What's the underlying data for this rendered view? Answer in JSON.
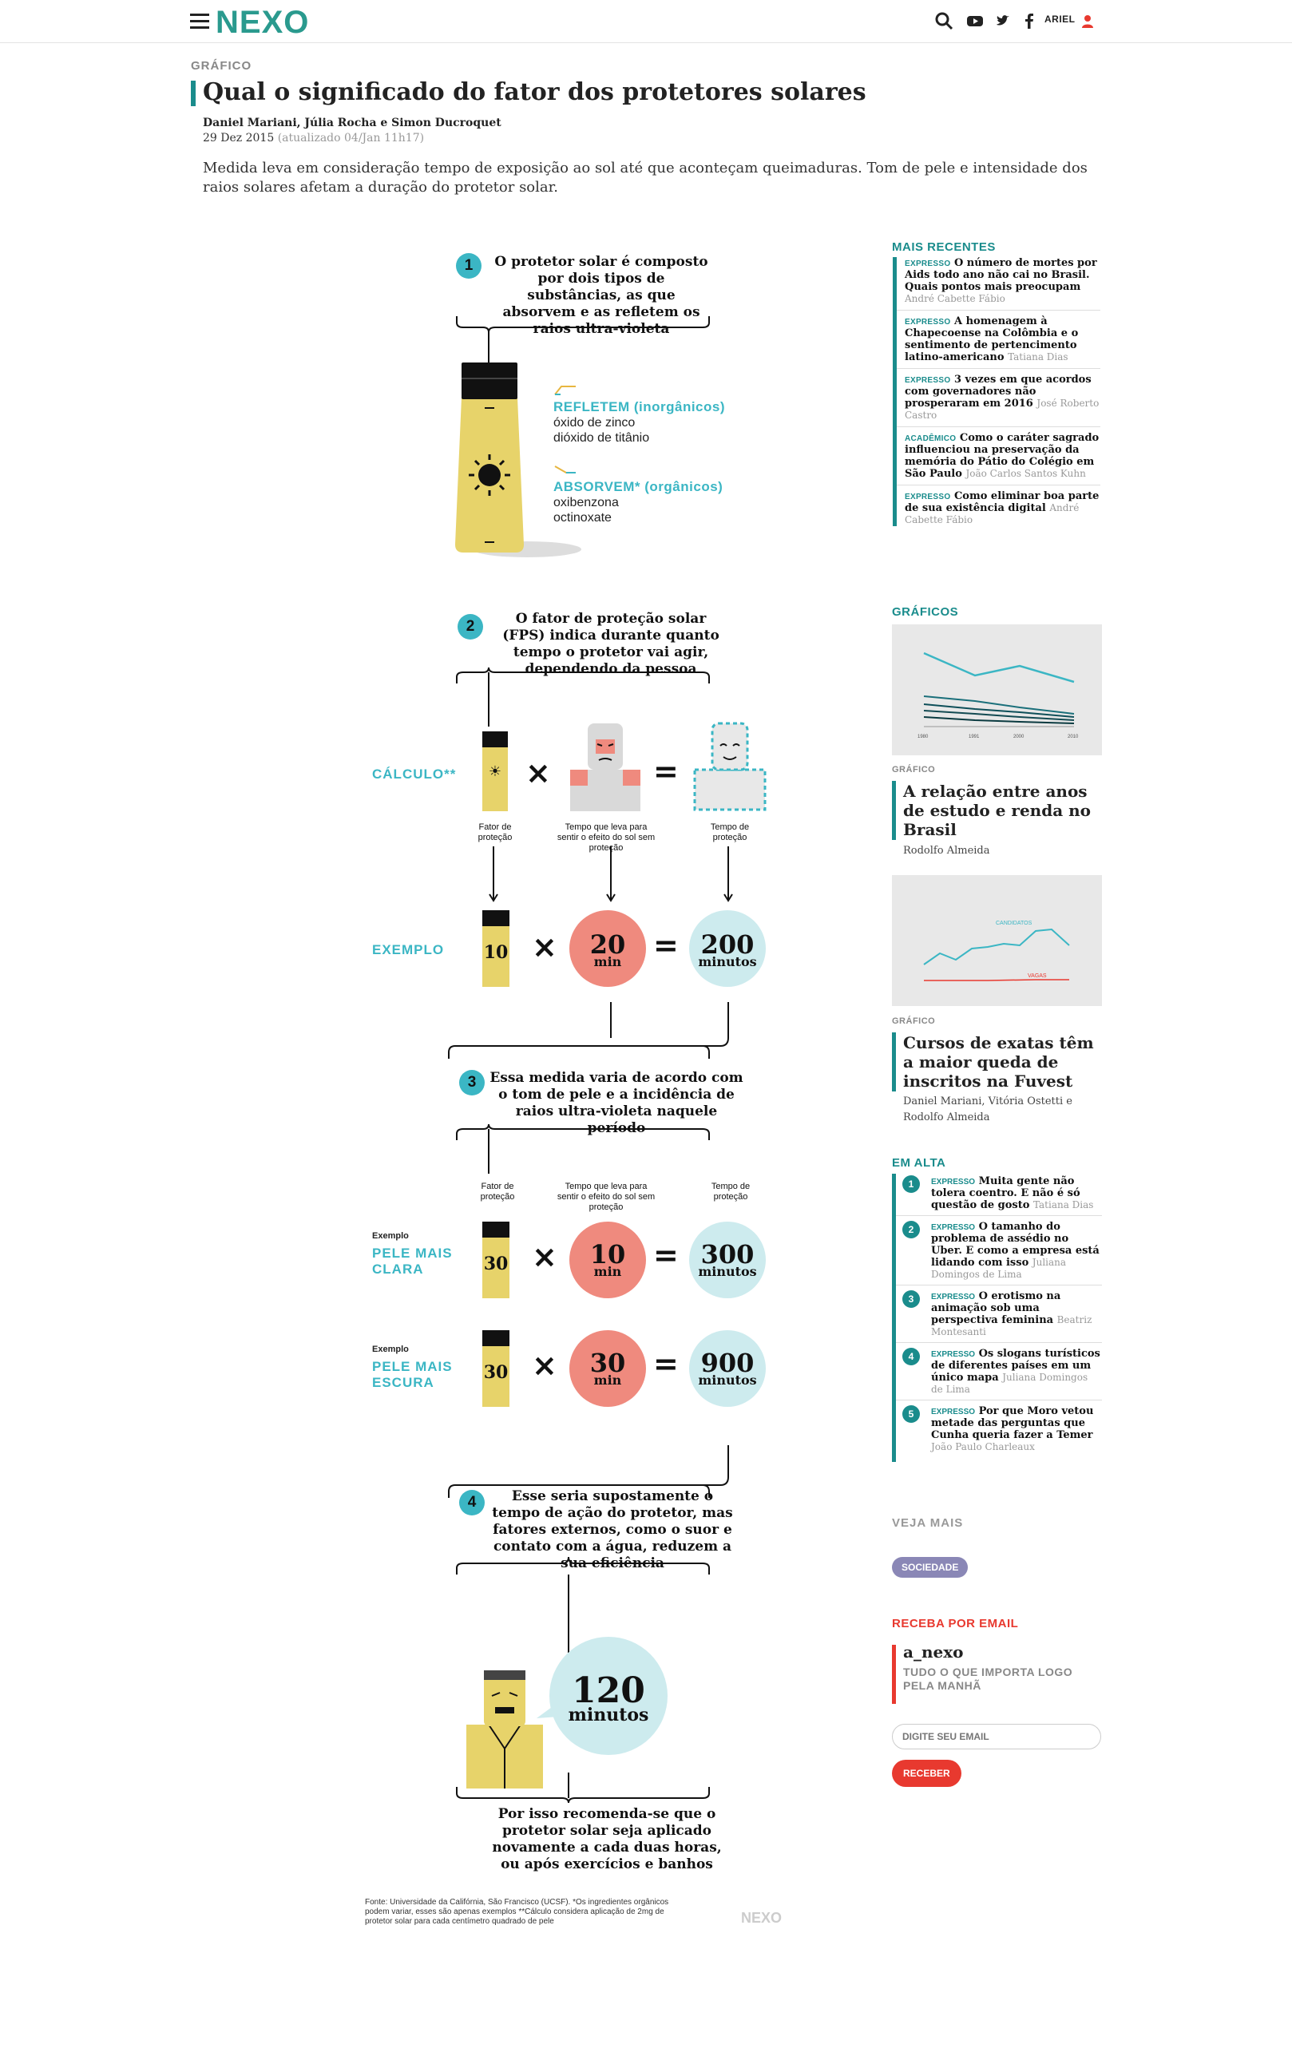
{
  "header": {
    "logo": "NEXO",
    "user": "ARIEL",
    "icons": [
      "menu-icon",
      "search-icon",
      "youtube-icon",
      "twitter-icon",
      "facebook-icon",
      "user-icon"
    ]
  },
  "article": {
    "kicker": "GRÁFICO",
    "title": "Qual o significado do fator dos protetores solares",
    "authors": "Daniel Mariani, Júlia Rocha e Simon Ducroquet",
    "date": "29 Dez 2015",
    "updated": "(atualizado 04/Jan 11h17)",
    "lede": "Medida leva em consideração tempo de exposição ao sol até que aconteçam queimaduras. Tom de pele e intensidade dos raios solares afetam a duração do protetor solar."
  },
  "infographic": {
    "step1": {
      "num": "1",
      "text": "O protetor solar é composto por dois tipos de substâncias, as que absorvem e as refletem os raios ultra-violeta"
    },
    "reflect": {
      "title": "REFLETEM (inorgânicos)",
      "item1": "óxido de zinco",
      "item2": "dióxido de titânio"
    },
    "absorb": {
      "title": "ABSORVEM* (orgânicos)",
      "item1": "oxibenzona",
      "item2": "octinoxate"
    },
    "step2": {
      "num": "2",
      "text": "O fator de proteção solar (FPS) indica durante quanto tempo o protetor vai agir, dependendo da pessoa"
    },
    "calc_label": "CÁLCULO**",
    "calc_cap1": "Fator de proteção",
    "calc_cap2": "Tempo que leva para sentir o efeito do sol sem proteção",
    "calc_cap3": "Tempo de proteção",
    "times": "×",
    "equals": "=",
    "example_label": "EXEMPLO",
    "example": {
      "factor": "10",
      "min_val": "20",
      "min_unit": "min",
      "res_val": "200",
      "res_unit": "minutos"
    },
    "step3": {
      "num": "3",
      "text": "Essa medida varia de acordo com o tom de pele e a incidência de raios ultra-violeta naquele período"
    },
    "cap1": "Fator de proteção",
    "cap2": "Tempo que leva para sentir o efeito do sol sem proteção",
    "cap3": "Tempo de proteção",
    "light": {
      "pre": "Exemplo",
      "label1": "PELE MAIS",
      "label2": "CLARA",
      "factor": "30",
      "min_val": "10",
      "min_unit": "min",
      "res_val": "300",
      "res_unit": "minutos"
    },
    "dark": {
      "pre": "Exemplo",
      "label1": "PELE MAIS",
      "label2": "ESCURA",
      "factor": "30",
      "min_val": "30",
      "min_unit": "min",
      "res_val": "900",
      "res_unit": "minutos"
    },
    "step4": {
      "num": "4",
      "text": "Esse seria supostamente o tempo de ação do protetor, mas fatores externos, como o suor e contato com a água, reduzem a sua eficiência"
    },
    "final": {
      "val": "120",
      "unit": "minutos"
    },
    "conclusion": "Por isso recomenda-se que o protetor solar seja aplicado novamente a cada duas horas, ou após exercícios e banhos",
    "source": "Fonte: Universidade da Califórnia, São Francisco (UCSF). *Os ingredientes orgânicos podem variar, esses são apenas exemplos **Cálculo considera aplicação de 2mg de protetor solar para cada centímetro quadrado de pele",
    "watermark": "NEXO"
  },
  "sidebar": {
    "recent_title": "MAIS RECENTES",
    "recent": [
      {
        "tag": "EXPRESSO",
        "text": "O número de mortes por Aids todo ano não cai no Brasil. Quais pontos mais preocupam",
        "author": "André Cabette Fábio"
      },
      {
        "tag": "EXPRESSO",
        "text": "A homenagem à Chapecoense na Colômbia e o sentimento de pertencimento latino-americano",
        "author": "Tatiana Dias"
      },
      {
        "tag": "EXPRESSO",
        "text": "3 vezes em que acordos com governadores não prosperaram em 2016",
        "author": "José Roberto Castro"
      },
      {
        "tag": "ACADÊMICO",
        "text": "Como o caráter sagrado influenciou na preservação da memória do Pátio do Colégio em São Paulo",
        "author": "João Carlos Santos Kuhn"
      },
      {
        "tag": "EXPRESSO",
        "text": "Como eliminar boa parte de sua existência digital",
        "author": "André Cabette Fábio"
      }
    ],
    "charts_title": "GRÁFICOS",
    "chart1": {
      "kicker": "GRÁFICO",
      "title": "A relação entre anos de estudo e renda no Brasil",
      "author": "Rodolfo Almeida",
      "ticks": [
        "1980",
        "1991",
        "2000",
        "2010"
      ]
    },
    "chart2": {
      "kicker": "GRÁFICO",
      "title": "Cursos de exatas têm a maior queda de inscritos na Fuvest",
      "author1": "Daniel Mariani, Vitória Ostetti e",
      "author2": "Rodolfo Almeida",
      "label1": "CANDIDATOS",
      "label2": "VAGAS"
    },
    "trending_title": "EM ALTA",
    "trending": [
      {
        "n": "1",
        "tag": "EXPRESSO",
        "text": "Muita gente não tolera coentro. E não é só questão de gosto",
        "author": "Tatiana Dias"
      },
      {
        "n": "2",
        "tag": "EXPRESSO",
        "text": "O tamanho do problema de assédio no Uber. E como a empresa está lidando com isso",
        "author": "Juliana Domingos de Lima"
      },
      {
        "n": "3",
        "tag": "EXPRESSO",
        "text": "O erotismo na animação sob uma perspectiva feminina",
        "author": "Beatriz Montesanti"
      },
      {
        "n": "4",
        "tag": "EXPRESSO",
        "text": "Os slogans turísticos de diferentes países em um único mapa",
        "author": "Juliana Domingos de Lima"
      },
      {
        "n": "5",
        "tag": "EXPRESSO",
        "text": "Por que Moro vetou metade das perguntas que Cunha queria fazer a Temer",
        "author": "João Paulo Charleaux"
      }
    ],
    "see_more": "VEJA MAIS",
    "tag_button": "SOCIEDADE",
    "email_title": "RECEBA POR EMAIL",
    "newsletter_name": "a_nexo",
    "newsletter_desc": "TUDO O QUE IMPORTA LOGO PELA MANHÃ",
    "email_placeholder": "DIGITE SEU EMAIL",
    "submit": "RECEBER"
  },
  "colors": {
    "teal": "#1a8c8c",
    "cyan": "#3bb6c4",
    "yellow": "#e7d36a",
    "salmon": "#ef8a7e",
    "lightblue": "#cdebee",
    "red": "#e8392f",
    "purple": "#8a87b6"
  }
}
